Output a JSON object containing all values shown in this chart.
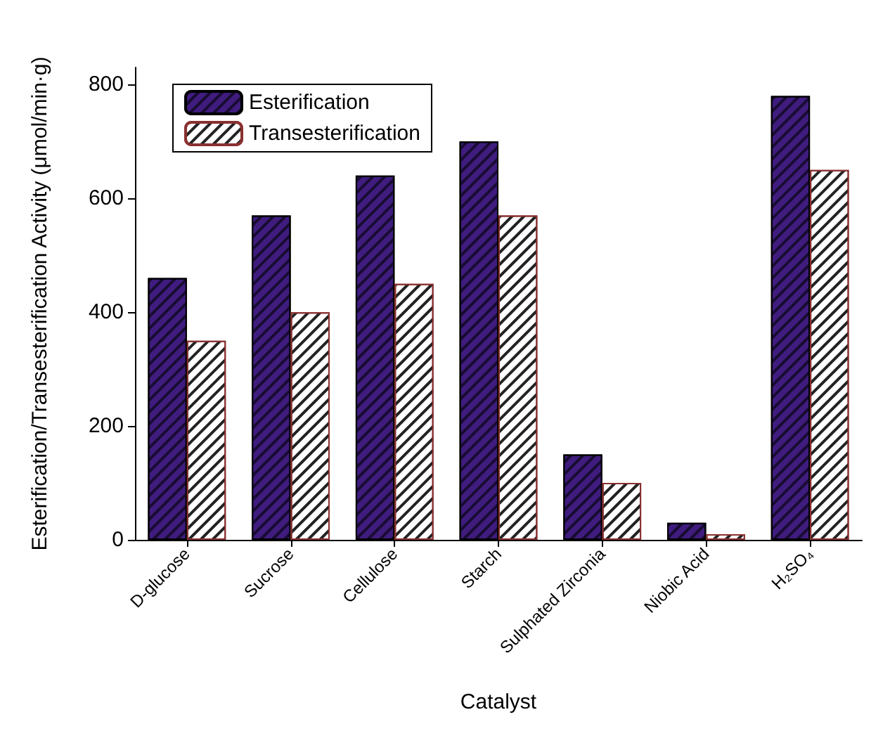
{
  "chart_data": {
    "type": "bar",
    "xlabel": "Catalyst",
    "ylabel": "Esterification/Transesterification Activity (μmol/min·g)",
    "categories": [
      "D-glucose",
      "Sucrose",
      "Cellulose",
      "Starch",
      "Sulphated Zirconia",
      "Niobic Acid",
      "H₂SO₄"
    ],
    "series": [
      {
        "name": "Esterification",
        "color": "#3f1c7e",
        "values": [
          460,
          570,
          640,
          700,
          150,
          30,
          780
        ]
      },
      {
        "name": "Transesterification",
        "color": "#ffffff",
        "values": [
          350,
          400,
          450,
          570,
          100,
          10,
          650
        ]
      }
    ],
    "ylim": [
      0,
      830
    ],
    "yticks": [
      0,
      200,
      400,
      600,
      800
    ],
    "grid": false,
    "legend": "top left"
  }
}
